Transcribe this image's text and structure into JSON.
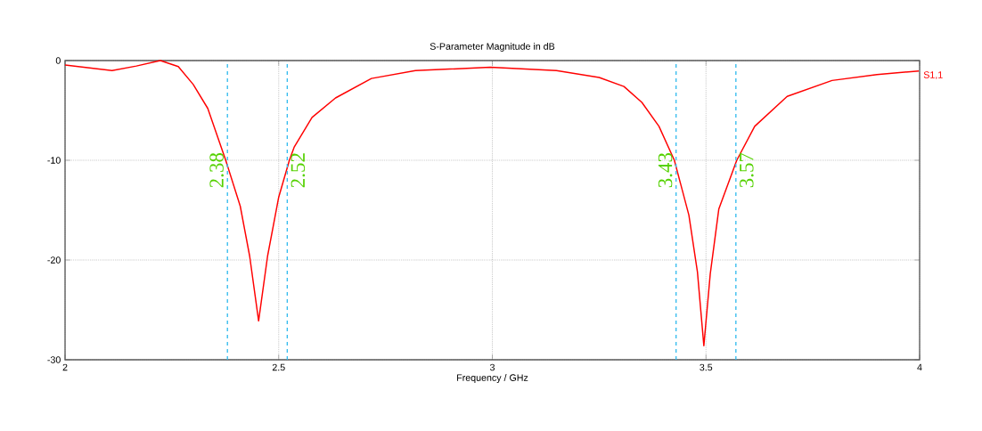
{
  "chart_data": {
    "type": "line",
    "title": "S-Parameter Magnitude in dB",
    "xlabel": "Frequency / GHz",
    "xlim": [
      2,
      4
    ],
    "ylim": [
      -30,
      0
    ],
    "xticks": [
      2,
      2.5,
      3,
      3.5,
      4
    ],
    "yticks": [
      -30,
      -20,
      -10,
      0
    ],
    "grid": true,
    "legend": "top right",
    "marker": "none",
    "line_style": "solid",
    "series": [
      {
        "name": "S1,1",
        "color": "#ff0000",
        "x": [
          2.0,
          2.11,
          2.167,
          2.223,
          2.265,
          2.3,
          2.334,
          2.376,
          2.41,
          2.432,
          2.453,
          2.474,
          2.5,
          2.525,
          2.536,
          2.578,
          2.633,
          2.717,
          2.82,
          2.995,
          3.15,
          3.25,
          3.308,
          3.35,
          3.39,
          3.426,
          3.46,
          3.48,
          3.495,
          3.51,
          3.53,
          3.572,
          3.614,
          3.69,
          3.795,
          3.9,
          3.998
        ],
        "values": [
          -0.45,
          -1.0,
          -0.55,
          0,
          -0.6,
          -2.4,
          -4.8,
          -10,
          -14.6,
          -19.6,
          -26.1,
          -19.6,
          -13.7,
          -10,
          -8.7,
          -5.7,
          -3.75,
          -1.8,
          -1.0,
          -0.68,
          -1.0,
          -1.7,
          -2.6,
          -4.2,
          -6.6,
          -10,
          -15.5,
          -21.2,
          -28.6,
          -21.4,
          -14.9,
          -10,
          -6.6,
          -3.6,
          -2.0,
          -1.4,
          -1.05
        ]
      }
    ],
    "ref_lines": [
      {
        "axis": "x",
        "value": 2.38,
        "label": "2.38",
        "color": "#33bbee",
        "line_style": "dashed"
      },
      {
        "axis": "x",
        "value": 2.52,
        "label": "2.52",
        "color": "#33bbee",
        "line_style": "dashed"
      },
      {
        "axis": "x",
        "value": 3.43,
        "label": "3.43",
        "color": "#33bbee",
        "line_style": "dashed"
      },
      {
        "axis": "x",
        "value": 3.57,
        "label": "3.57",
        "color": "#33bbee",
        "line_style": "dashed"
      }
    ]
  }
}
